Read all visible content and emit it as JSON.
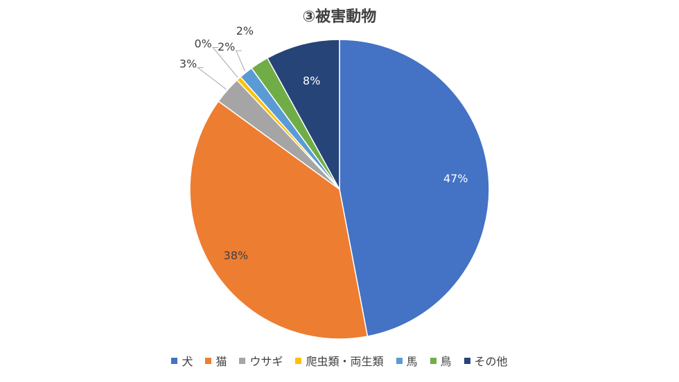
{
  "chart_data": {
    "type": "pie",
    "title": "③被害動物",
    "categories": [
      "犬",
      "猫",
      "ウサギ",
      "爬虫類・両生類",
      "馬",
      "鳥",
      "その他"
    ],
    "values": [
      47,
      38,
      3,
      0.5,
      1.5,
      2,
      8
    ],
    "data_labels": [
      "47%",
      "38%",
      "3%",
      "0%",
      "2%",
      "2%",
      "8%"
    ],
    "colors": [
      "#4472C4",
      "#ED7D31",
      "#A5A5A5",
      "#FFC000",
      "#5B9BD5",
      "#70AD47",
      "#264478"
    ],
    "legend_position": "bottom"
  }
}
